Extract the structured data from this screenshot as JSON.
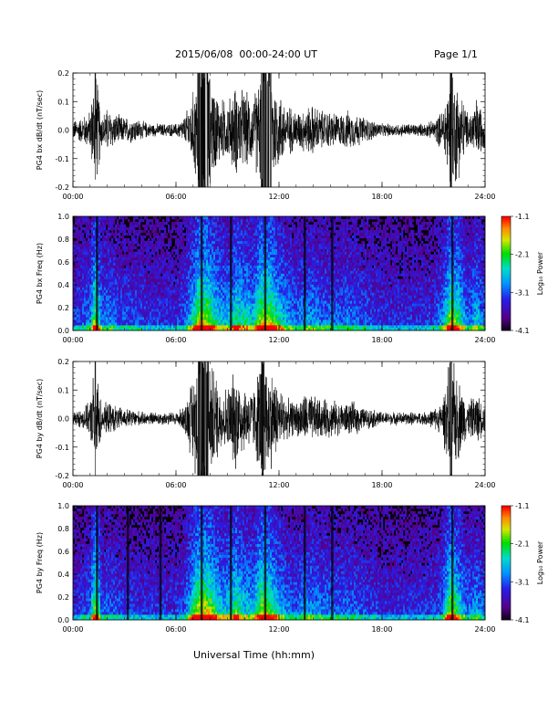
{
  "header": {
    "title": "2015/06/08  00:00-24:00 UT",
    "page": "Page 1/1"
  },
  "footer": {
    "xlabel": "Universal Time (hh:mm)"
  },
  "chart_data": [
    {
      "type": "line",
      "ylabel": "PG4 bx dB/dt (nT/sec)",
      "xticks": [
        "00:00",
        "06:00",
        "12:00",
        "18:00",
        "24:00"
      ],
      "xlim": [
        0,
        24
      ],
      "ylim": [
        -0.2,
        0.2
      ],
      "yticks": [
        "-0.2",
        "-0.1",
        "0.0",
        "0.1",
        "0.2"
      ],
      "activity_envelope": [
        [
          0.0,
          0.03
        ],
        [
          0.5,
          0.04
        ],
        [
          1.0,
          0.06
        ],
        [
          1.3,
          0.2
        ],
        [
          1.7,
          0.05
        ],
        [
          2.0,
          0.07
        ],
        [
          2.5,
          0.05
        ],
        [
          3.0,
          0.04
        ],
        [
          3.5,
          0.04
        ],
        [
          4.0,
          0.03
        ],
        [
          4.5,
          0.02
        ],
        [
          5.0,
          0.02
        ],
        [
          5.5,
          0.02
        ],
        [
          6.0,
          0.02
        ],
        [
          6.5,
          0.04
        ],
        [
          7.0,
          0.12
        ],
        [
          7.3,
          0.2
        ],
        [
          7.8,
          0.2
        ],
        [
          8.2,
          0.14
        ],
        [
          8.6,
          0.1
        ],
        [
          9.0,
          0.09
        ],
        [
          9.5,
          0.14
        ],
        [
          10.0,
          0.12
        ],
        [
          10.5,
          0.1
        ],
        [
          11.0,
          0.2
        ],
        [
          11.5,
          0.2
        ],
        [
          12.0,
          0.12
        ],
        [
          12.5,
          0.08
        ],
        [
          13.0,
          0.06
        ],
        [
          13.5,
          0.07
        ],
        [
          14.0,
          0.08
        ],
        [
          14.5,
          0.06
        ],
        [
          15.0,
          0.06
        ],
        [
          15.5,
          0.05
        ],
        [
          16.0,
          0.06
        ],
        [
          16.5,
          0.05
        ],
        [
          17.0,
          0.04
        ],
        [
          17.5,
          0.03
        ],
        [
          18.0,
          0.02
        ],
        [
          18.5,
          0.02
        ],
        [
          19.0,
          0.02
        ],
        [
          19.5,
          0.02
        ],
        [
          20.0,
          0.02
        ],
        [
          20.5,
          0.02
        ],
        [
          21.0,
          0.03
        ],
        [
          21.5,
          0.06
        ],
        [
          21.8,
          0.14
        ],
        [
          22.0,
          0.2
        ],
        [
          22.5,
          0.14
        ],
        [
          23.0,
          0.05
        ],
        [
          23.5,
          0.1
        ],
        [
          24.0,
          0.05
        ]
      ]
    },
    {
      "type": "heatmap",
      "ylabel": "PG4 bx Freq (Hz)",
      "xticks": [
        "00:00",
        "06:00",
        "12:00",
        "18:00",
        "24:00"
      ],
      "xlim": [
        0,
        24
      ],
      "ylim": [
        0.0,
        1.0
      ],
      "yticks": [
        "0.0",
        "0.2",
        "0.4",
        "0.6",
        "0.8",
        "1.0"
      ],
      "colorbar": {
        "label": "Log₁₀ Power",
        "ticks": [
          "-1.1",
          "-2.1",
          "-3.1",
          "-4.1"
        ],
        "range": [
          -4.1,
          -1.1
        ]
      },
      "events": [
        1.4,
        7.5,
        9.2,
        11.2,
        13.5,
        15.1,
        22.1
      ]
    },
    {
      "type": "line",
      "ylabel": "PG4 by dB/dt (nT/sec)",
      "xticks": [
        "00:00",
        "06:00",
        "12:00",
        "18:00",
        "24:00"
      ],
      "xlim": [
        0,
        24
      ],
      "ylim": [
        -0.2,
        0.2
      ],
      "yticks": [
        "-0.2",
        "-0.1",
        "0.0",
        "0.1",
        "0.2"
      ],
      "activity_envelope": [
        [
          0.0,
          0.02
        ],
        [
          0.5,
          0.03
        ],
        [
          1.0,
          0.05
        ],
        [
          1.3,
          0.2
        ],
        [
          1.7,
          0.04
        ],
        [
          2.0,
          0.05
        ],
        [
          2.5,
          0.04
        ],
        [
          3.0,
          0.03
        ],
        [
          3.5,
          0.03
        ],
        [
          4.0,
          0.02
        ],
        [
          4.5,
          0.02
        ],
        [
          5.0,
          0.02
        ],
        [
          5.5,
          0.02
        ],
        [
          6.0,
          0.02
        ],
        [
          6.5,
          0.04
        ],
        [
          7.0,
          0.14
        ],
        [
          7.3,
          0.2
        ],
        [
          7.8,
          0.2
        ],
        [
          8.2,
          0.16
        ],
        [
          8.6,
          0.1
        ],
        [
          9.0,
          0.1
        ],
        [
          9.5,
          0.16
        ],
        [
          10.0,
          0.1
        ],
        [
          10.5,
          0.09
        ],
        [
          11.0,
          0.2
        ],
        [
          11.5,
          0.16
        ],
        [
          12.0,
          0.1
        ],
        [
          12.5,
          0.06
        ],
        [
          13.0,
          0.05
        ],
        [
          13.5,
          0.08
        ],
        [
          14.0,
          0.07
        ],
        [
          14.5,
          0.06
        ],
        [
          15.0,
          0.06
        ],
        [
          15.5,
          0.05
        ],
        [
          16.0,
          0.05
        ],
        [
          16.5,
          0.05
        ],
        [
          17.0,
          0.03
        ],
        [
          17.5,
          0.03
        ],
        [
          18.0,
          0.02
        ],
        [
          18.5,
          0.02
        ],
        [
          19.0,
          0.02
        ],
        [
          19.5,
          0.02
        ],
        [
          20.0,
          0.02
        ],
        [
          20.5,
          0.02
        ],
        [
          21.0,
          0.03
        ],
        [
          21.5,
          0.05
        ],
        [
          21.8,
          0.14
        ],
        [
          22.0,
          0.2
        ],
        [
          22.5,
          0.12
        ],
        [
          23.0,
          0.05
        ],
        [
          23.5,
          0.08
        ],
        [
          24.0,
          0.04
        ]
      ]
    },
    {
      "type": "heatmap",
      "ylabel": "PG4 by Freq (Hz)",
      "xticks": [
        "00:00",
        "06:00",
        "12:00",
        "18:00",
        "24:00"
      ],
      "xlim": [
        0,
        24
      ],
      "ylim": [
        0.0,
        1.0
      ],
      "yticks": [
        "0.0",
        "0.2",
        "0.4",
        "0.6",
        "0.8",
        "1.0"
      ],
      "colorbar": {
        "label": "Log₁₀ Power",
        "ticks": [
          "-1.1",
          "-2.1",
          "-3.1",
          "-4.1"
        ],
        "range": [
          -4.1,
          -1.1
        ]
      },
      "events": [
        1.4,
        3.2,
        5.1,
        7.5,
        9.2,
        11.2,
        13.5,
        15.1,
        22.1
      ]
    }
  ]
}
